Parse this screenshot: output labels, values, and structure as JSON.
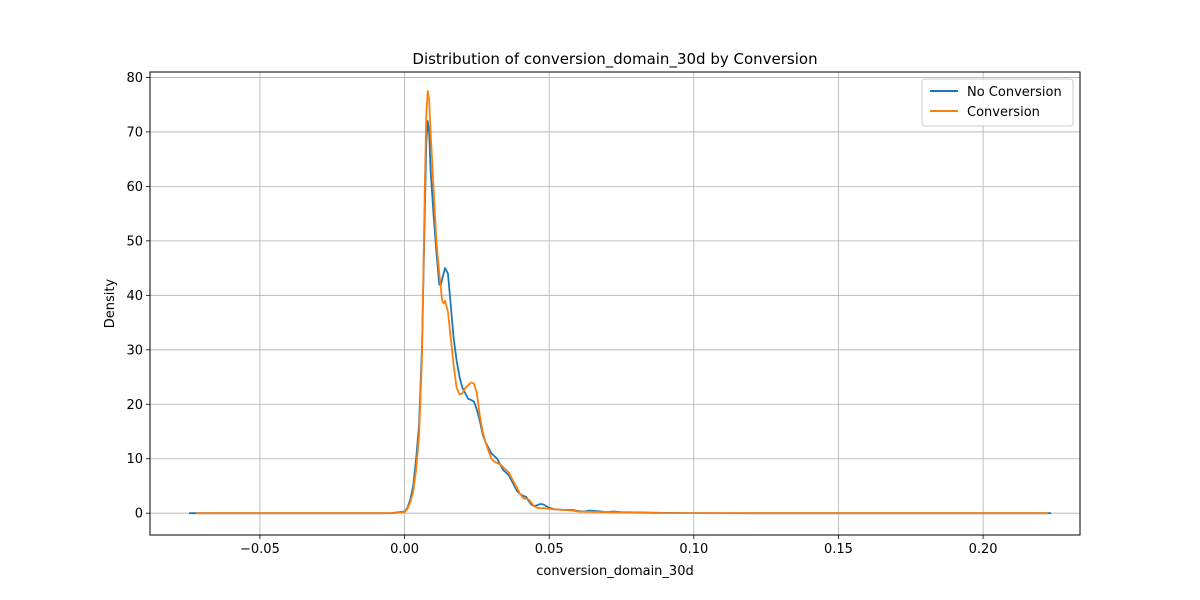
{
  "chart_data": {
    "type": "line",
    "title": "Distribution of conversion_domain_30d by Conversion",
    "xlabel": "conversion_domain_30d",
    "ylabel": "Density",
    "xlim": [
      -0.088,
      0.2335
    ],
    "ylim": [
      -4,
      81
    ],
    "xticks": [
      -0.05,
      0.0,
      0.05,
      0.1,
      0.15,
      0.2
    ],
    "xtick_labels": [
      "−0.05",
      "0.00",
      "0.05",
      "0.10",
      "0.15",
      "0.20"
    ],
    "yticks": [
      0,
      10,
      20,
      30,
      40,
      50,
      60,
      70,
      80
    ],
    "ytick_labels": [
      "0",
      "10",
      "20",
      "30",
      "40",
      "50",
      "60",
      "70",
      "80"
    ],
    "grid": true,
    "legend": "top-right",
    "series": [
      {
        "name": "No Conversion",
        "color": "#1f77b4",
        "points": [
          [
            -0.0745,
            0
          ],
          [
            -0.05,
            0
          ],
          [
            -0.02,
            0
          ],
          [
            -0.005,
            0
          ],
          [
            0.0,
            0.3
          ],
          [
            0.001,
            1.0
          ],
          [
            0.002,
            2.5
          ],
          [
            0.003,
            5
          ],
          [
            0.004,
            10
          ],
          [
            0.005,
            16
          ],
          [
            0.006,
            30
          ],
          [
            0.007,
            55
          ],
          [
            0.0075,
            68
          ],
          [
            0.008,
            72
          ],
          [
            0.0085,
            70
          ],
          [
            0.009,
            63
          ],
          [
            0.01,
            55
          ],
          [
            0.011,
            48
          ],
          [
            0.012,
            42
          ],
          [
            0.0125,
            41.8
          ],
          [
            0.013,
            43
          ],
          [
            0.014,
            45
          ],
          [
            0.015,
            44
          ],
          [
            0.016,
            38
          ],
          [
            0.017,
            32
          ],
          [
            0.018,
            28
          ],
          [
            0.019,
            25
          ],
          [
            0.02,
            23
          ],
          [
            0.021,
            22
          ],
          [
            0.022,
            21
          ],
          [
            0.023,
            20.8
          ],
          [
            0.024,
            20.5
          ],
          [
            0.025,
            19
          ],
          [
            0.026,
            17
          ],
          [
            0.027,
            14.5
          ],
          [
            0.028,
            13
          ],
          [
            0.029,
            12
          ],
          [
            0.03,
            11
          ],
          [
            0.031,
            10.5
          ],
          [
            0.032,
            10
          ],
          [
            0.033,
            9
          ],
          [
            0.034,
            8
          ],
          [
            0.035,
            7.5
          ],
          [
            0.036,
            7
          ],
          [
            0.037,
            6
          ],
          [
            0.038,
            5
          ],
          [
            0.039,
            4
          ],
          [
            0.04,
            3.5
          ],
          [
            0.041,
            3.2
          ],
          [
            0.042,
            3
          ],
          [
            0.043,
            2.2
          ],
          [
            0.044,
            1.5
          ],
          [
            0.045,
            1.3
          ],
          [
            0.046,
            1.5
          ],
          [
            0.047,
            1.7
          ],
          [
            0.048,
            1.6
          ],
          [
            0.049,
            1.3
          ],
          [
            0.05,
            1.0
          ],
          [
            0.052,
            0.7
          ],
          [
            0.055,
            0.6
          ],
          [
            0.058,
            0.6
          ],
          [
            0.06,
            0.4
          ],
          [
            0.062,
            0.3
          ],
          [
            0.064,
            0.5
          ],
          [
            0.066,
            0.4
          ],
          [
            0.068,
            0.3
          ],
          [
            0.07,
            0.2
          ],
          [
            0.072,
            0.3
          ],
          [
            0.075,
            0.2
          ],
          [
            0.08,
            0.15
          ],
          [
            0.085,
            0.1
          ],
          [
            0.09,
            0.05
          ],
          [
            0.1,
            0.02
          ],
          [
            0.12,
            0
          ],
          [
            0.15,
            0
          ],
          [
            0.18,
            0
          ],
          [
            0.2,
            0
          ],
          [
            0.2235,
            0
          ]
        ]
      },
      {
        "name": "Conversion",
        "color": "#ff7f0e",
        "points": [
          [
            -0.072,
            0
          ],
          [
            -0.05,
            0
          ],
          [
            -0.02,
            0
          ],
          [
            -0.004,
            0
          ],
          [
            0.0,
            0.2
          ],
          [
            0.001,
            0.8
          ],
          [
            0.002,
            2
          ],
          [
            0.003,
            4
          ],
          [
            0.004,
            8
          ],
          [
            0.005,
            14
          ],
          [
            0.006,
            28
          ],
          [
            0.007,
            60
          ],
          [
            0.0075,
            73
          ],
          [
            0.008,
            77.5
          ],
          [
            0.0085,
            76
          ],
          [
            0.009,
            70
          ],
          [
            0.01,
            60
          ],
          [
            0.011,
            50
          ],
          [
            0.012,
            44
          ],
          [
            0.013,
            39
          ],
          [
            0.0135,
            38.5
          ],
          [
            0.014,
            39
          ],
          [
            0.015,
            37
          ],
          [
            0.016,
            32
          ],
          [
            0.017,
            27
          ],
          [
            0.018,
            23
          ],
          [
            0.019,
            21.8
          ],
          [
            0.02,
            22
          ],
          [
            0.021,
            23
          ],
          [
            0.022,
            23.5
          ],
          [
            0.023,
            24
          ],
          [
            0.024,
            23.8
          ],
          [
            0.025,
            22
          ],
          [
            0.026,
            18
          ],
          [
            0.027,
            15
          ],
          [
            0.028,
            13
          ],
          [
            0.029,
            11.5
          ],
          [
            0.03,
            10
          ],
          [
            0.031,
            9.5
          ],
          [
            0.032,
            9.2
          ],
          [
            0.033,
            9
          ],
          [
            0.034,
            8.5
          ],
          [
            0.035,
            8
          ],
          [
            0.036,
            7.5
          ],
          [
            0.037,
            6.5
          ],
          [
            0.038,
            5.5
          ],
          [
            0.039,
            4.5
          ],
          [
            0.04,
            3.5
          ],
          [
            0.041,
            2.8
          ],
          [
            0.042,
            2.6
          ],
          [
            0.043,
            2.5
          ],
          [
            0.044,
            1.8
          ],
          [
            0.045,
            1.2
          ],
          [
            0.046,
            1.0
          ],
          [
            0.047,
            0.9
          ],
          [
            0.048,
            0.95
          ],
          [
            0.05,
            0.8
          ],
          [
            0.052,
            0.7
          ],
          [
            0.055,
            0.6
          ],
          [
            0.058,
            0.5
          ],
          [
            0.06,
            0.3
          ],
          [
            0.065,
            0.25
          ],
          [
            0.07,
            0.2
          ],
          [
            0.075,
            0.15
          ],
          [
            0.08,
            0.1
          ],
          [
            0.085,
            0.05
          ],
          [
            0.09,
            0.02
          ],
          [
            0.1,
            0.01
          ],
          [
            0.12,
            0
          ],
          [
            0.15,
            0
          ],
          [
            0.18,
            0
          ],
          [
            0.2,
            0
          ],
          [
            0.2225,
            0
          ]
        ]
      }
    ]
  }
}
